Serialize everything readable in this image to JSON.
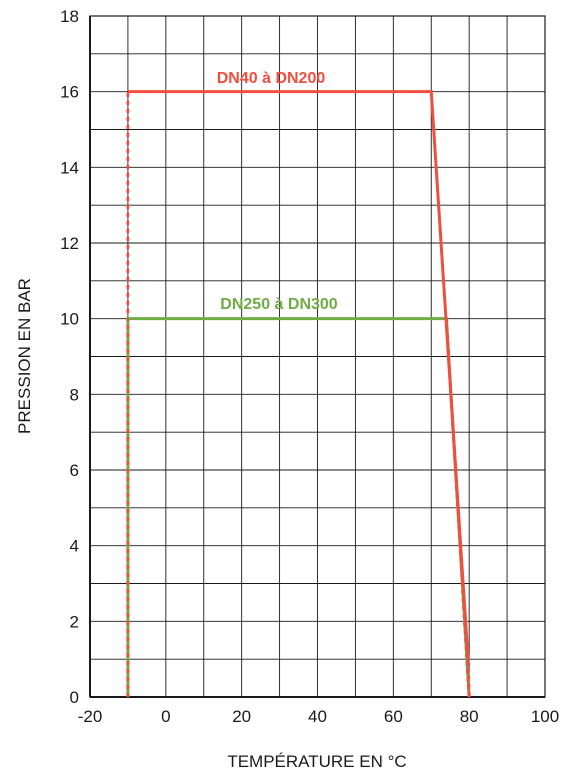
{
  "chart_data": {
    "type": "line",
    "xlabel": "TEMPÉRATURE EN °C",
    "ylabel": "PRESSION EN BAR",
    "xlim": [
      -20,
      100
    ],
    "ylim": [
      0,
      18
    ],
    "x_ticks": [
      -20,
      0,
      20,
      40,
      60,
      80,
      100
    ],
    "y_ticks": [
      0,
      2,
      4,
      6,
      8,
      10,
      12,
      14,
      16,
      18
    ],
    "grid": true,
    "series": [
      {
        "name": "DN40 à DN200",
        "color": "#f04e3e",
        "points": [
          [
            -10,
            16
          ],
          [
            70,
            16
          ],
          [
            79.7,
            1
          ],
          [
            80,
            0
          ]
        ],
        "dashed_segment": [
          [
            -10,
            0
          ],
          [
            -10,
            16
          ]
        ]
      },
      {
        "name": "DN250 à DN300",
        "color": "#6fac46",
        "points": [
          [
            -10,
            0
          ],
          [
            -10,
            10
          ],
          [
            74,
            10
          ],
          [
            80,
            0
          ]
        ]
      }
    ]
  }
}
